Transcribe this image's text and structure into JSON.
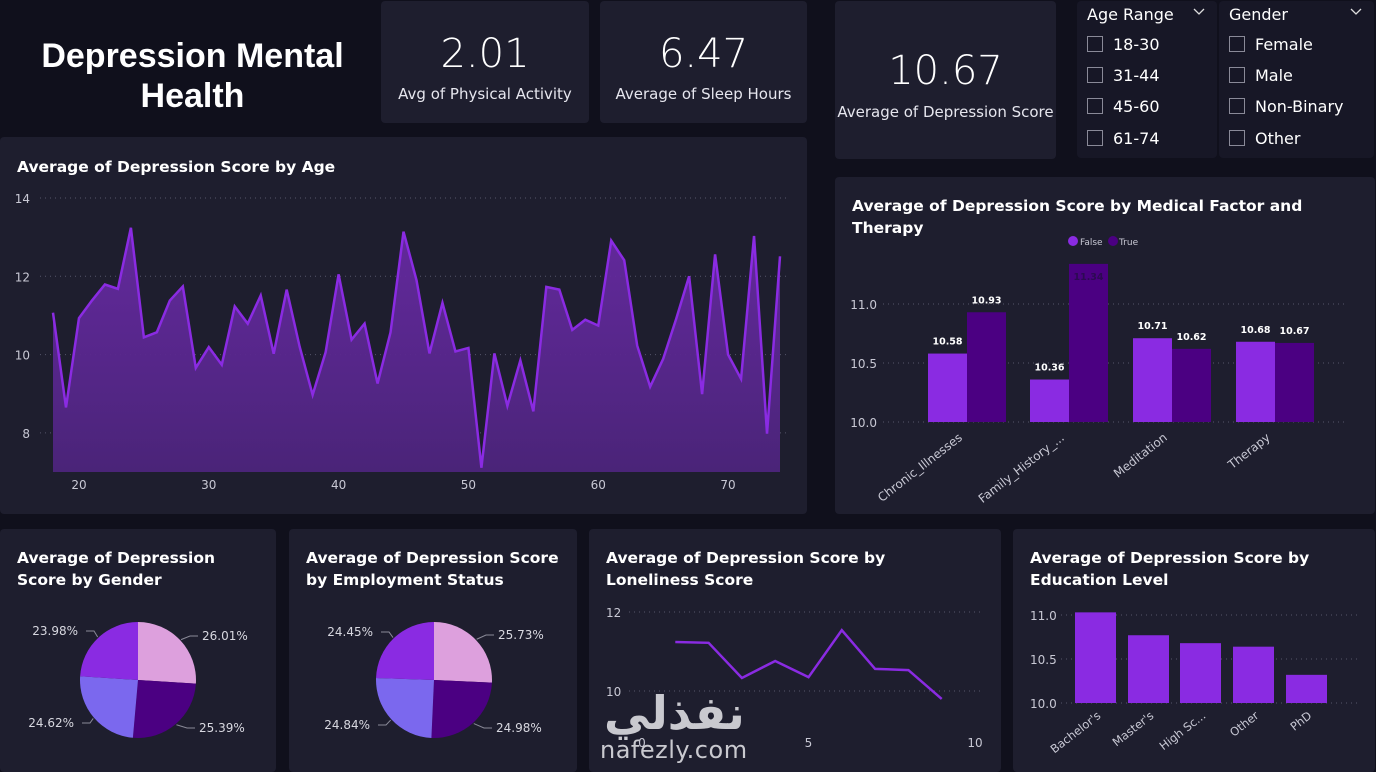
{
  "header": {
    "title": "Depression Mental Health"
  },
  "kpis": [
    {
      "value": "2.01",
      "label": "Avg of Physical Activity"
    },
    {
      "value": "6.47",
      "label": "Average of Sleep Hours"
    },
    {
      "value": "10.67",
      "label": "Average of Depression Score"
    }
  ],
  "slicers": {
    "age_range": {
      "title": "Age Range",
      "options": [
        "18-30",
        "31-44",
        "45-60",
        "61-74"
      ]
    },
    "gender": {
      "title": "Gender",
      "options": [
        "Female",
        "Male",
        "Non-Binary",
        "Other"
      ]
    }
  },
  "colors": {
    "accent": "#8a2be2",
    "dark_purple": "#4b0082",
    "light_pink": "#dda0dd",
    "periwinkle": "#7b68ee",
    "card_bg": "#1e1e2e",
    "page_bg": "#10101c"
  },
  "watermark": {
    "arabic": "نفذلي",
    "latin": "nafezly.com"
  },
  "chart_data": [
    {
      "id": "age",
      "type": "area",
      "title": "Average of Depression Score by Age",
      "xlabel": "",
      "ylabel": "",
      "xlim": [
        18,
        74
      ],
      "ylim": [
        7,
        14
      ],
      "xticks": [
        20,
        30,
        40,
        50,
        60,
        70
      ],
      "yticks": [
        8,
        10,
        12,
        14
      ],
      "grid": true,
      "x": [
        18,
        19,
        20,
        21,
        22,
        23,
        24,
        25,
        26,
        27,
        28,
        29,
        30,
        31,
        32,
        33,
        34,
        35,
        36,
        37,
        38,
        39,
        40,
        41,
        42,
        43,
        44,
        45,
        46,
        47,
        48,
        49,
        50,
        51,
        52,
        53,
        54,
        55,
        56,
        57,
        58,
        59,
        60,
        61,
        62,
        63,
        64,
        65,
        66,
        67,
        68,
        69,
        70,
        71,
        72,
        73,
        74
      ],
      "values": [
        11.07,
        8.65,
        10.93,
        11.38,
        11.79,
        11.68,
        13.24,
        10.44,
        10.57,
        11.38,
        11.74,
        9.66,
        10.19,
        9.74,
        11.23,
        10.79,
        11.51,
        10.02,
        11.66,
        10.2,
        8.97,
        10.06,
        12.05,
        10.38,
        10.79,
        9.26,
        10.57,
        13.14,
        11.9,
        10.03,
        11.32,
        10.08,
        10.17,
        7.11,
        10.03,
        8.69,
        9.85,
        8.55,
        11.73,
        11.66,
        10.63,
        10.89,
        10.74,
        12.91,
        12.41,
        10.23,
        9.18,
        9.89,
        10.91,
        12.0,
        8.99,
        12.56,
        10.0,
        9.38,
        13.03,
        7.98,
        12.51
      ]
    },
    {
      "id": "medical",
      "type": "bar",
      "title": "Average of Depression Score by Medical Factor and Therapy",
      "categories": [
        "Chronic_Illnesses",
        "Family_History_...",
        "Meditation",
        "Therapy"
      ],
      "series": [
        {
          "name": "False",
          "values": [
            10.58,
            10.36,
            10.71,
            10.68
          ],
          "labels": [
            "10.58",
            "10.36",
            "10.71",
            "10.68"
          ]
        },
        {
          "name": "True",
          "values": [
            10.93,
            11.34,
            10.62,
            10.67
          ],
          "labels": [
            "10.93",
            "11.34",
            "10.62",
            "10.67"
          ]
        }
      ],
      "ylim": [
        10.0,
        11.35
      ],
      "yticks": [
        "10.0",
        "10.5",
        "11.0"
      ],
      "legend": "top-center",
      "grid": true
    },
    {
      "id": "gender",
      "type": "pie",
      "title": "Average of Depression Score by Gender",
      "slices": [
        {
          "label": "26.01%",
          "value": 26.01,
          "color": "#dda0dd"
        },
        {
          "label": "25.39%",
          "value": 25.39,
          "color": "#4b0082"
        },
        {
          "label": "24.62%",
          "value": 24.62,
          "color": "#7b68ee"
        },
        {
          "label": "23.98%",
          "value": 23.98,
          "color": "#8a2be2"
        }
      ]
    },
    {
      "id": "employment",
      "type": "pie",
      "title": "Average of Depression Score by Employment Status",
      "slices": [
        {
          "label": "25.73%",
          "value": 25.73,
          "color": "#dda0dd"
        },
        {
          "label": "24.98%",
          "value": 24.98,
          "color": "#4b0082"
        },
        {
          "label": "24.84%",
          "value": 24.84,
          "color": "#7b68ee"
        },
        {
          "label": "24.45%",
          "value": 24.45,
          "color": "#8a2be2"
        }
      ]
    },
    {
      "id": "loneliness",
      "type": "line",
      "title": "Average of Depression Score by Loneliness Score",
      "x": [
        1,
        2,
        3,
        4,
        5,
        6,
        7,
        8,
        9
      ],
      "values": [
        11.24,
        11.22,
        10.33,
        10.76,
        10.35,
        11.54,
        10.56,
        10.53,
        9.8
      ],
      "xlim": [
        0,
        10
      ],
      "ylim": [
        9.2,
        12.2
      ],
      "xticks": [
        0,
        5,
        10
      ],
      "yticks": [
        10,
        12
      ],
      "grid": true
    },
    {
      "id": "education",
      "type": "bar",
      "title": "Average of Depression Score by Education Level",
      "categories": [
        "Bachelor's",
        "Master's",
        "High Sc...",
        "Other",
        "PhD"
      ],
      "values": [
        11.03,
        10.77,
        10.68,
        10.64,
        10.32
      ],
      "ylim": [
        10.0,
        11.1
      ],
      "yticks": [
        "10.0",
        "10.5",
        "11.0"
      ],
      "grid": true
    }
  ]
}
